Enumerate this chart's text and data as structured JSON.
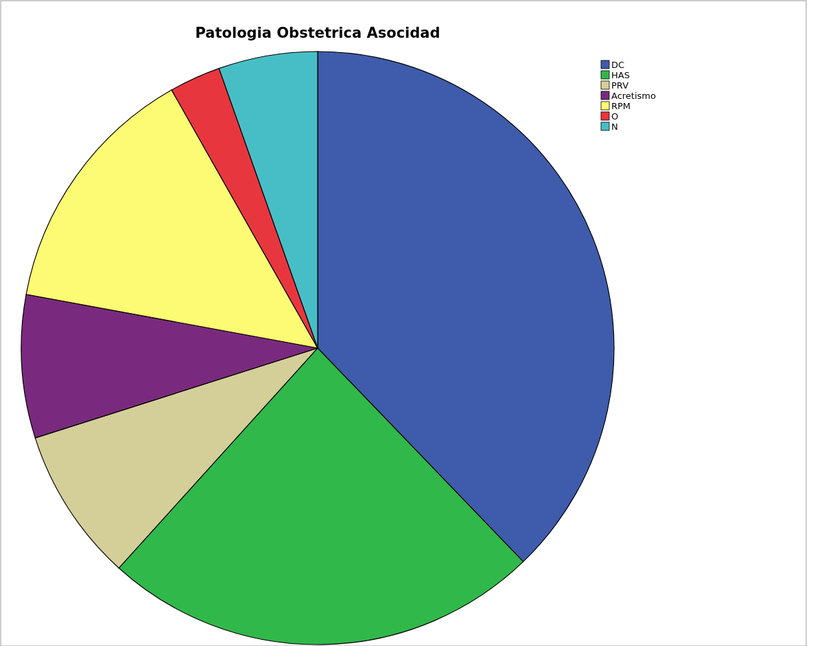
{
  "chart_data": {
    "type": "pie",
    "title": "Patologia Obstetrica Asocidad",
    "categories": [
      "DC",
      "HAS",
      "PRV",
      "Acretismo",
      "RPM",
      "O",
      "N"
    ],
    "values": [
      37.8,
      23.9,
      8.4,
      7.8,
      13.9,
      2.8,
      5.4
    ],
    "colors": [
      "#3f5bab",
      "#30b84a",
      "#d4cf98",
      "#7a2a7e",
      "#fdfa73",
      "#e8363f",
      "#47bec6"
    ],
    "legend": "top right"
  }
}
